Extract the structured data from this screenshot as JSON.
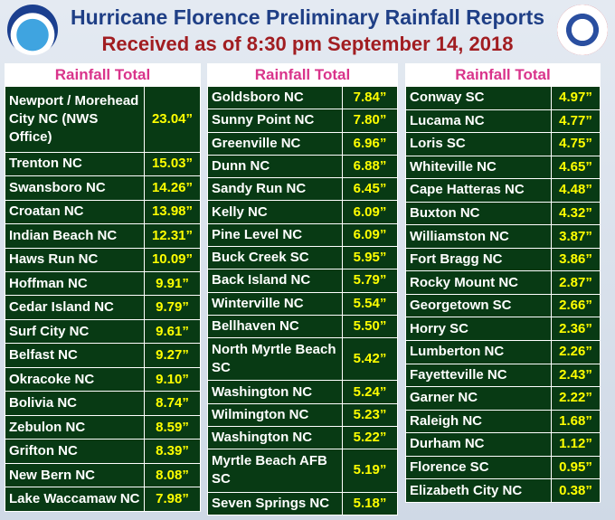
{
  "header": {
    "title": "Hurricane Florence Preliminary Rainfall Reports",
    "subtitle": "Received as of 8:30 pm September 14, 2018"
  },
  "tables": [
    {
      "header": "Rainfall Total",
      "rows": [
        [
          "Newport / Morehead City NC (NWS Office)",
          "23.04”"
        ],
        [
          "Trenton NC",
          "15.03”"
        ],
        [
          "Swansboro NC",
          "14.26”"
        ],
        [
          "Croatan NC",
          "13.98”"
        ],
        [
          "Indian Beach NC",
          "12.31”"
        ],
        [
          "Haws Run NC",
          "10.09”"
        ],
        [
          "Hoffman NC",
          "9.91”"
        ],
        [
          "Cedar Island NC",
          "9.79”"
        ],
        [
          "Surf City NC",
          "9.61”"
        ],
        [
          "Belfast NC",
          "9.27”"
        ],
        [
          "Okracoke NC",
          "9.10”"
        ],
        [
          "Bolivia NC",
          "8.74”"
        ],
        [
          "Zebulon NC",
          "8.59”"
        ],
        [
          "Grifton NC",
          "8.39”"
        ],
        [
          "New Bern NC",
          "8.08”"
        ],
        [
          "Lake Waccamaw NC",
          "7.98”"
        ]
      ]
    },
    {
      "header": "Rainfall Total",
      "rows": [
        [
          "Goldsboro NC",
          "7.84”"
        ],
        [
          "Sunny Point NC",
          "7.80”"
        ],
        [
          "Greenville NC",
          "6.96”"
        ],
        [
          "Dunn NC",
          "6.88”"
        ],
        [
          "Sandy Run NC",
          "6.45”"
        ],
        [
          "Kelly NC",
          "6.09”"
        ],
        [
          "Pine Level NC",
          "6.09”"
        ],
        [
          "Buck Creek SC",
          "5.95”"
        ],
        [
          "Back Island NC",
          "5.79”"
        ],
        [
          "Winterville NC",
          "5.54”"
        ],
        [
          "Bellhaven NC",
          "5.50”"
        ],
        [
          "North Myrtle Beach SC",
          "5.42”"
        ],
        [
          "Washington NC",
          "5.24”"
        ],
        [
          "Wilmington NC",
          "5.23”"
        ],
        [
          "Washington NC",
          "5.22”"
        ],
        [
          "Myrtle Beach AFB SC",
          "5.19”"
        ],
        [
          "Seven Springs NC",
          "5.18”"
        ]
      ]
    },
    {
      "header": "Rainfall Total",
      "rows": [
        [
          "Conway SC",
          "4.97”"
        ],
        [
          "Lucama NC",
          "4.77”"
        ],
        [
          "Loris SC",
          "4.75”"
        ],
        [
          "Whiteville NC",
          "4.65”"
        ],
        [
          "Cape Hatteras NC",
          "4.48”"
        ],
        [
          "Buxton NC",
          "4.32”"
        ],
        [
          "Williamston NC",
          "3.87”"
        ],
        [
          "Fort Bragg NC",
          "3.86”"
        ],
        [
          "Rocky Mount NC",
          "2.87”"
        ],
        [
          "Georgetown SC",
          "2.66”"
        ],
        [
          "Horry SC",
          "2.36”"
        ],
        [
          "Lumberton NC",
          "2.26”"
        ],
        [
          "Fayetteville NC",
          "2.43”"
        ],
        [
          "Garner NC",
          "2.22”"
        ],
        [
          "Raleigh NC",
          "1.68”"
        ],
        [
          "Durham NC",
          "1.12”"
        ],
        [
          "Florence SC",
          "0.95”"
        ],
        [
          "Elizabeth City NC",
          "0.38”"
        ]
      ]
    }
  ]
}
